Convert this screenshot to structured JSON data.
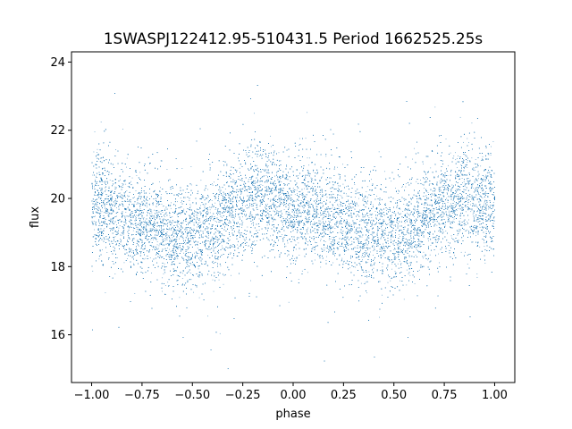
{
  "chart_data": {
    "type": "scatter",
    "title": "1SWASPJ122412.95-510431.5 Period 1662525.25s",
    "xlabel": "phase",
    "ylabel": "flux",
    "xlim": [
      -1.1,
      1.1
    ],
    "ylim": [
      14.6,
      24.3
    ],
    "xticks": [
      -1.0,
      -0.75,
      -0.5,
      -0.25,
      0.0,
      0.25,
      0.5,
      0.75,
      1.0
    ],
    "xtick_labels": [
      "−1.00",
      "−0.75",
      "−0.50",
      "−0.25",
      "0.00",
      "0.25",
      "0.50",
      "0.75",
      "1.00"
    ],
    "yticks": [
      16,
      18,
      20,
      22,
      24
    ],
    "ytick_labels": [
      "16",
      "18",
      "20",
      "22",
      "24"
    ],
    "grid": false,
    "marker_color": "#1f77b4",
    "series": [
      {
        "trend": {
          "phase": [
            -1.0,
            -0.95,
            -0.9,
            -0.85,
            -0.8,
            -0.75,
            -0.7,
            -0.65,
            -0.6,
            -0.55,
            -0.5,
            -0.45,
            -0.4,
            -0.35,
            -0.3,
            -0.25,
            -0.2,
            -0.15,
            -0.1,
            -0.05,
            0.0,
            0.05,
            0.1,
            0.15,
            0.2,
            0.25,
            0.3,
            0.35,
            0.4,
            0.45,
            0.5,
            0.55,
            0.6,
            0.65,
            0.7,
            0.75,
            0.8,
            0.85,
            0.9,
            0.95,
            1.0
          ],
          "flux": [
            19.9,
            19.8,
            19.6,
            19.5,
            19.4,
            19.3,
            19.2,
            19.1,
            19.0,
            18.9,
            18.9,
            19.0,
            19.2,
            19.4,
            19.6,
            19.8,
            20.0,
            20.0,
            19.9,
            19.8,
            19.7,
            19.7,
            19.6,
            19.5,
            19.4,
            19.3,
            19.2,
            19.1,
            19.0,
            18.9,
            18.9,
            19.0,
            19.2,
            19.4,
            19.6,
            19.8,
            20.0,
            20.0,
            19.9,
            19.8,
            19.9
          ]
        },
        "spread_sigma": 0.75,
        "range": [
          15.0,
          23.6
        ],
        "points_count": 26000
      }
    ]
  }
}
